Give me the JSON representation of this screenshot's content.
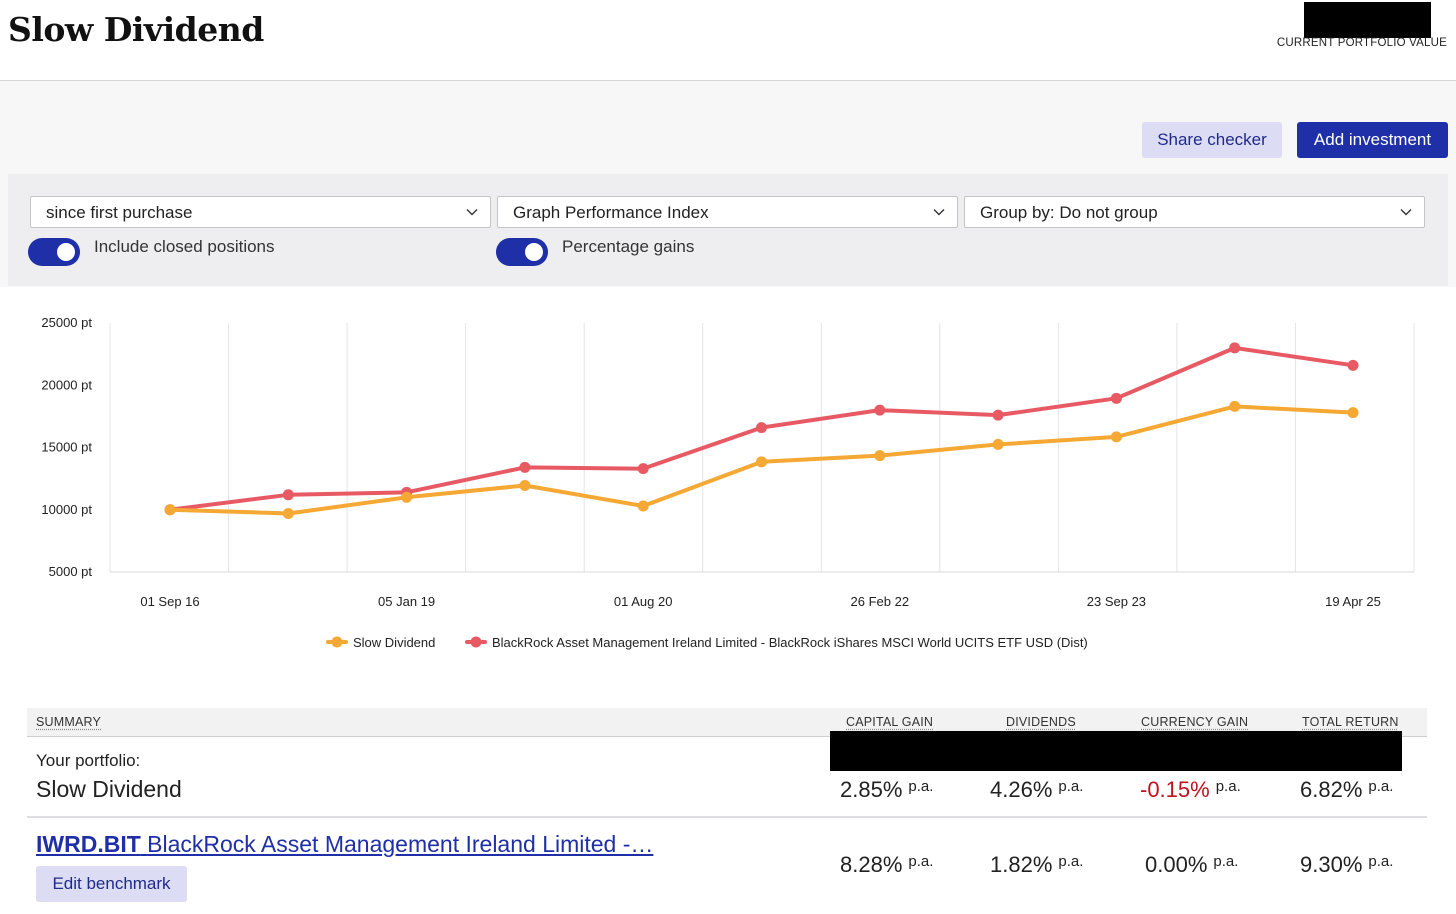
{
  "header": {
    "title": "Slow Dividend",
    "portfolio_value_label": "CURRENT PORTFOLIO VALUE"
  },
  "actions": {
    "share_checker": "Share checker",
    "add_investment": "Add investment"
  },
  "controls": {
    "period_select": "since first purchase",
    "graph_select": "Graph Performance Index",
    "group_select": "Group by: Do not group",
    "toggle_closed_label": "Include closed positions",
    "toggle_closed_on": true,
    "toggle_pct_label": "Percentage gains",
    "toggle_pct_on": true
  },
  "colors": {
    "primary": "#1f2fa8",
    "series_portfolio": "#f5a833",
    "series_benchmark": "#e85a63",
    "negative": "#c0121c"
  },
  "chart_data": {
    "type": "line",
    "y_unit": " pt",
    "y_ticks": [
      5000,
      10000,
      15000,
      20000,
      25000
    ],
    "ylim": [
      5000,
      25000
    ],
    "x_tick_labels": [
      "01 Sep 16",
      "05 Jan 19",
      "01 Aug 20",
      "26 Feb 22",
      "23 Sep 23",
      "19 Apr 25"
    ],
    "x_tick_at_point_index": [
      0,
      2,
      4,
      6,
      8,
      10
    ],
    "point_count": 11,
    "grid": true,
    "legend_position": "bottom",
    "series": [
      {
        "name": "Slow Dividend",
        "color": "#f5a833",
        "values": [
          10000,
          9700,
          11000,
          11950,
          10300,
          13850,
          14350,
          15250,
          15850,
          18300,
          17800
        ]
      },
      {
        "name": "BlackRock Asset Management Ireland Limited - BlackRock iShares MSCI World UCITS ETF USD (Dist)",
        "color": "#e85a63",
        "values": [
          10000,
          11200,
          11400,
          13400,
          13300,
          16600,
          18000,
          17600,
          18950,
          23000,
          21600
        ]
      }
    ]
  },
  "summary": {
    "headers": {
      "summary": "SUMMARY",
      "capital_gain": "CAPITAL GAIN",
      "dividends": "DIVIDENDS",
      "currency_gain": "CURRENCY GAIN",
      "total_return": "TOTAL RETURN"
    },
    "pa": "p.a.",
    "portfolio": {
      "caption": "Your portfolio:",
      "name": "Slow Dividend",
      "capital_gain": "2.85%",
      "dividends": "4.26%",
      "currency_gain": "-0.15%",
      "total_return": "6.82%"
    },
    "benchmark": {
      "ticker": "IWRD.BIT",
      "name": "BlackRock Asset Management Ireland Limited -…",
      "edit_label": "Edit benchmark",
      "capital_gain": "8.28%",
      "dividends": "1.82%",
      "currency_gain": "0.00%",
      "total_return": "9.30%"
    }
  }
}
